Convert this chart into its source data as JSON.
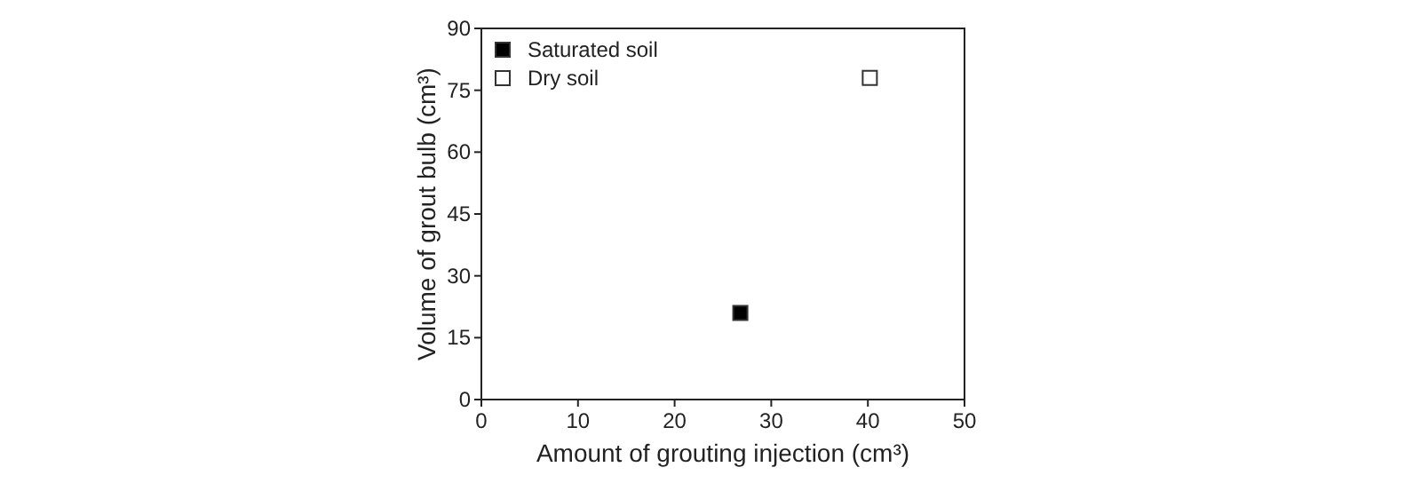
{
  "chart_data": {
    "type": "scatter",
    "xlabel": "Amount of grouting injection (cm³)",
    "ylabel": "Volume of grout bulb (cm³)",
    "xlim": [
      0,
      50
    ],
    "xticks": [
      0,
      10,
      20,
      30,
      40,
      50
    ],
    "ylim": [
      0,
      90
    ],
    "yticks": [
      0,
      15,
      30,
      45,
      60,
      75,
      90
    ],
    "marker": "square",
    "legend": "top left",
    "grid": false,
    "series": [
      {
        "name": "Saturated soil",
        "color": "#000000",
        "x": [
          26.8
        ],
        "values": [
          21
        ]
      },
      {
        "name": "Dry soil",
        "color": "#ffffff",
        "x": [
          40.2
        ],
        "values": [
          78
        ]
      }
    ]
  }
}
